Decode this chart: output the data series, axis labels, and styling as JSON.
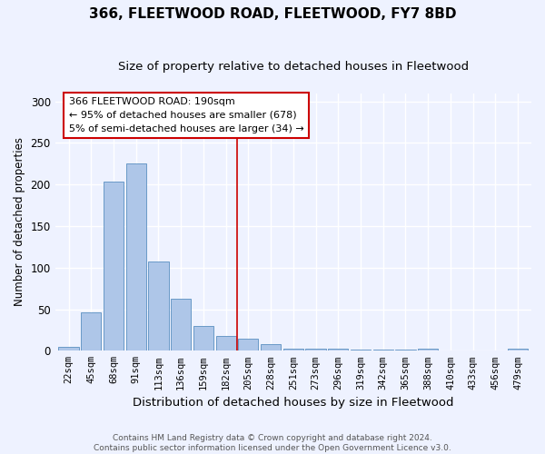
{
  "title": "366, FLEETWOOD ROAD, FLEETWOOD, FY7 8BD",
  "subtitle": "Size of property relative to detached houses in Fleetwood",
  "xlabel": "Distribution of detached houses by size in Fleetwood",
  "ylabel": "Number of detached properties",
  "categories": [
    "22sqm",
    "45sqm",
    "68sqm",
    "91sqm",
    "113sqm",
    "136sqm",
    "159sqm",
    "182sqm",
    "205sqm",
    "228sqm",
    "251sqm",
    "273sqm",
    "296sqm",
    "319sqm",
    "342sqm",
    "365sqm",
    "388sqm",
    "410sqm",
    "433sqm",
    "456sqm",
    "479sqm"
  ],
  "values": [
    5,
    46,
    203,
    225,
    107,
    63,
    30,
    18,
    15,
    8,
    3,
    3,
    2,
    1,
    1,
    1,
    2,
    0,
    0,
    0,
    2
  ],
  "bar_color": "#aec6e8",
  "bar_edge_color": "#5a8fc0",
  "background_color": "#eef2ff",
  "grid_color": "#ffffff",
  "vline_x": 7.5,
  "vline_color": "#cc0000",
  "annotation_text": "366 FLEETWOOD ROAD: 190sqm\n← 95% of detached houses are smaller (678)\n5% of semi-detached houses are larger (34) →",
  "annotation_box_color": "#ffffff",
  "annotation_box_edge_color": "#cc0000",
  "ylim": [
    0,
    310
  ],
  "yticks": [
    0,
    50,
    100,
    150,
    200,
    250,
    300
  ],
  "footer": "Contains HM Land Registry data © Crown copyright and database right 2024.\nContains public sector information licensed under the Open Government Licence v3.0.",
  "title_fontsize": 11,
  "subtitle_fontsize": 9.5,
  "xlabel_fontsize": 9.5,
  "ylabel_fontsize": 8.5,
  "tick_fontsize": 7.5,
  "annotation_fontsize": 8,
  "footer_fontsize": 6.5
}
